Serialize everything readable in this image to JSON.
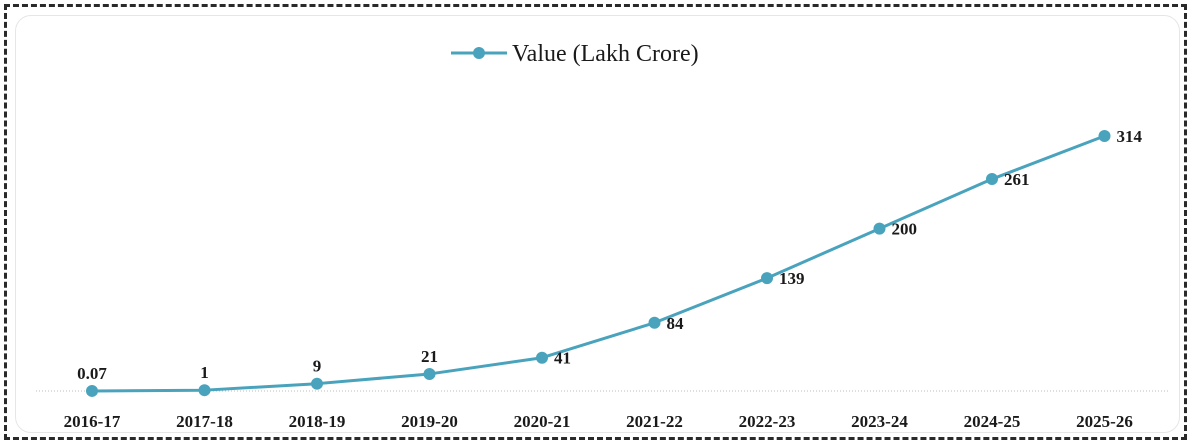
{
  "chart_data": {
    "type": "line",
    "categories": [
      "2016-17",
      "2017-18",
      "2018-19",
      "2019-20",
      "2020-21",
      "2021-22",
      "2022-23",
      "2023-24",
      "2024-25",
      "2025-26"
    ],
    "series": [
      {
        "name": "Value (Lakh Crore)",
        "values": [
          0.07,
          1,
          9,
          21,
          41,
          84,
          139,
          200,
          261,
          314
        ],
        "labels": [
          "0.07",
          "1",
          "9",
          "21",
          "41",
          "84",
          "139",
          "200",
          "261",
          "314"
        ],
        "color": "#4aa3bd"
      }
    ],
    "legend": {
      "position": "top-center"
    },
    "ylim": [
      0,
      314
    ],
    "grid": false,
    "baseline": true
  }
}
